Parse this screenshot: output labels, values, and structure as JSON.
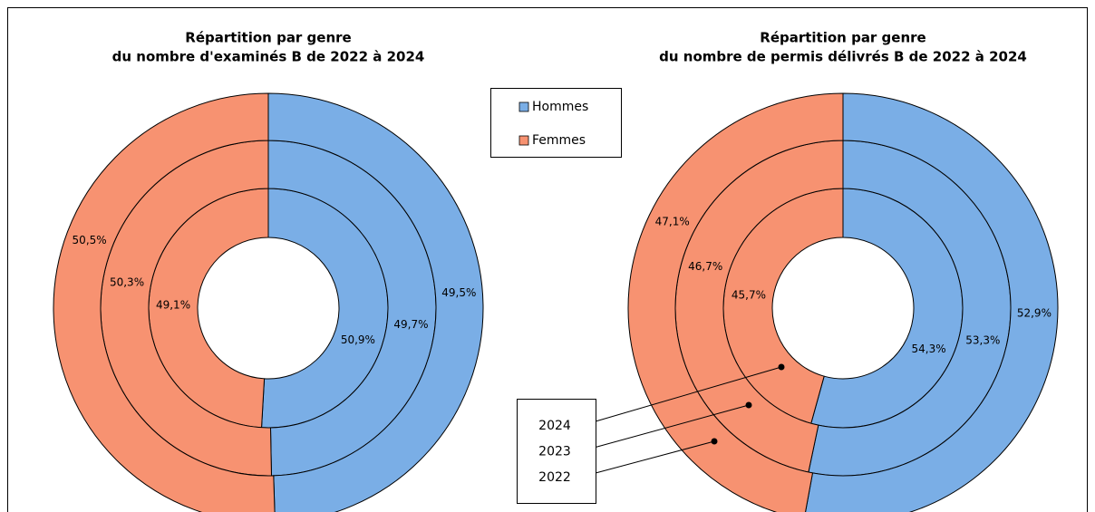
{
  "chart_data": [
    {
      "type": "pie",
      "title": [
        "Répartition par genre",
        "du nombre d'examinés B de 2022 à 2024"
      ],
      "series": [
        {
          "name": "Hommes",
          "color": "#7aaee6",
          "values": [
            50.9,
            49.7,
            49.5
          ],
          "value_labels": [
            "50,9%",
            "49,7%",
            "49,5%"
          ]
        },
        {
          "name": "Femmes",
          "color": "#f79271",
          "values": [
            49.1,
            50.3,
            50.5
          ],
          "value_labels": [
            "49,1%",
            "50,3%",
            "50,5%"
          ]
        }
      ]
    },
    {
      "type": "pie",
      "title": [
        "Répartition par genre",
        "du nombre de permis délivrés B de 2022 à 2024"
      ],
      "categories": [
        "2024",
        "2023",
        "2022"
      ],
      "series": [
        {
          "color": "#7aaee6",
          "values": [
            54.3,
            53.3,
            52.9
          ],
          "value_labels": [
            "54,3%",
            "53,3%",
            "52,9%"
          ]
        },
        {
          "color": "#f79271",
          "values": [
            45.7,
            46.7,
            47.1
          ],
          "value_labels": [
            "45,7%",
            "46,7%",
            "47,1%"
          ]
        }
      ]
    }
  ]
}
